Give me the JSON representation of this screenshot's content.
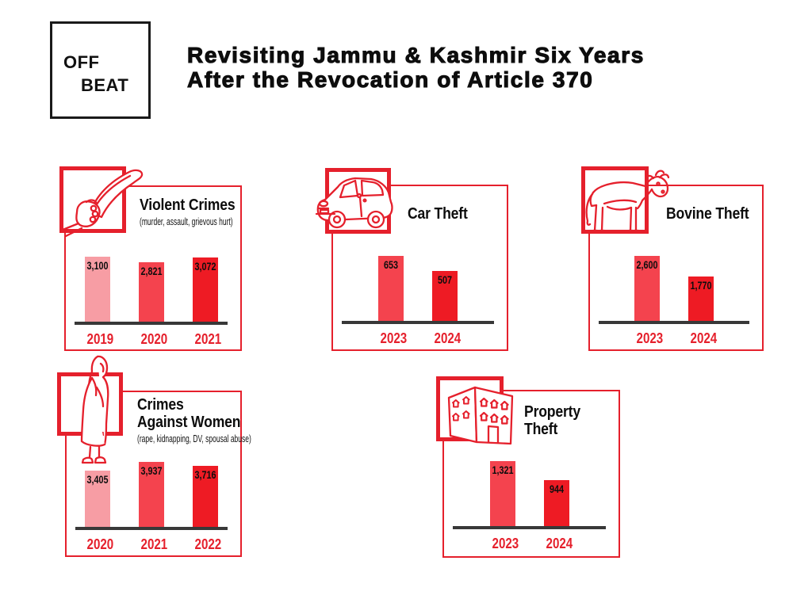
{
  "logo": {
    "line1": "OFF",
    "line2": "BEAT"
  },
  "header": {
    "title_line1": "Revisiting Jammu & Kashmir Six Years",
    "title_line2": "After the Revocation of Article 370"
  },
  "colors": {
    "brand_red": "#E5202C",
    "bar_light": "#F79DA4",
    "bar_mid": "#F4434E",
    "bar_bright": "#EE1B24",
    "axis": "#383838",
    "ink": "#0D0D0D"
  },
  "chart_data": [
    {
      "type": "bar",
      "title": "Violent Crimes",
      "subtitle": "(murder, assault, grievous hurt)",
      "icon": "knife-icon",
      "categories": [
        "2019",
        "2020",
        "2021"
      ],
      "values": [
        3100,
        2821,
        3072
      ],
      "value_labels": [
        "3,100",
        "2,821",
        "3,072"
      ],
      "bar_colors": [
        "#F79DA4",
        "#F4434E",
        "#EE1B24"
      ],
      "grid": false,
      "legend": "none"
    },
    {
      "type": "bar",
      "title": "Car Theft",
      "icon": "car-icon",
      "categories": [
        "2023",
        "2024"
      ],
      "values": [
        653,
        507
      ],
      "value_labels": [
        "653",
        "507"
      ],
      "bar_colors": [
        "#F4434E",
        "#EE1B24"
      ],
      "grid": false,
      "legend": "none"
    },
    {
      "type": "bar",
      "title": "Bovine Theft",
      "icon": "cow-icon",
      "categories": [
        "2023",
        "2024"
      ],
      "values": [
        2600,
        1770
      ],
      "value_labels": [
        "2,600",
        "1,770"
      ],
      "bar_colors": [
        "#F4434E",
        "#EE1B24"
      ],
      "grid": false,
      "legend": "none"
    },
    {
      "type": "bar",
      "title": "Crimes Against Women",
      "title_lines": [
        "Crimes",
        "Against Women"
      ],
      "subtitle": "(rape, kidnapping, DV, spousal abuse)",
      "icon": "woman-icon",
      "categories": [
        "2020",
        "2021",
        "2022"
      ],
      "values": [
        3405,
        3937,
        3716
      ],
      "value_labels": [
        "3,405",
        "3,937",
        "3,716"
      ],
      "bar_colors": [
        "#F79DA4",
        "#F4434E",
        "#EE1B24"
      ],
      "grid": false,
      "legend": "none"
    },
    {
      "type": "bar",
      "title": "Property Theft",
      "title_lines": [
        "Property",
        "Theft"
      ],
      "icon": "building-icon",
      "categories": [
        "2023",
        "2024"
      ],
      "values": [
        1321,
        944
      ],
      "value_labels": [
        "1,321",
        "944"
      ],
      "bar_colors": [
        "#F4434E",
        "#EE1B24"
      ],
      "grid": false,
      "legend": "none"
    }
  ]
}
